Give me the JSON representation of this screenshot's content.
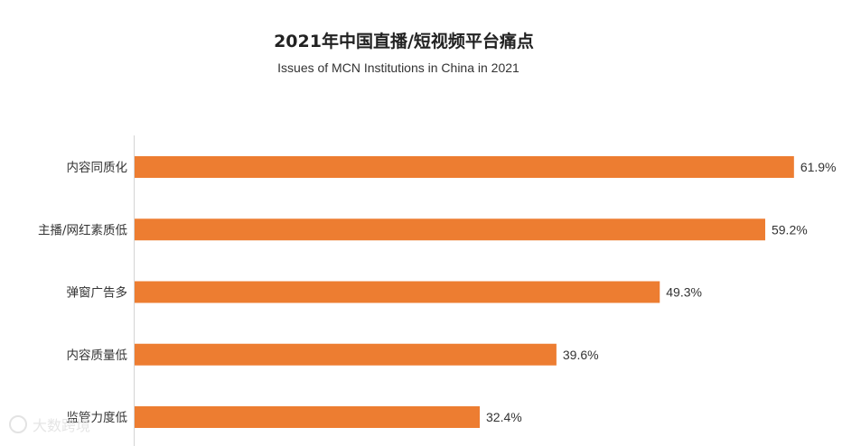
{
  "chart_data": {
    "type": "bar",
    "orientation": "horizontal",
    "title": "2021年中国直播/短视频平台痛点",
    "subtitle": "Issues of MCN Institutions in China in 2021",
    "categories": [
      "内容同质化",
      "主播/网红素质低",
      "弹窗广告多",
      "内容质量低",
      "监管力度低"
    ],
    "values": [
      61.9,
      59.2,
      49.3,
      39.6,
      32.4
    ],
    "value_labels": [
      "61.9%",
      "59.2%",
      "49.3%",
      "39.6%",
      "32.4%"
    ],
    "xlim": [
      0,
      62
    ],
    "grid": false,
    "legend": "none",
    "bar_color": "#ED7D31"
  },
  "watermark": {
    "logo": "大数跨境"
  }
}
